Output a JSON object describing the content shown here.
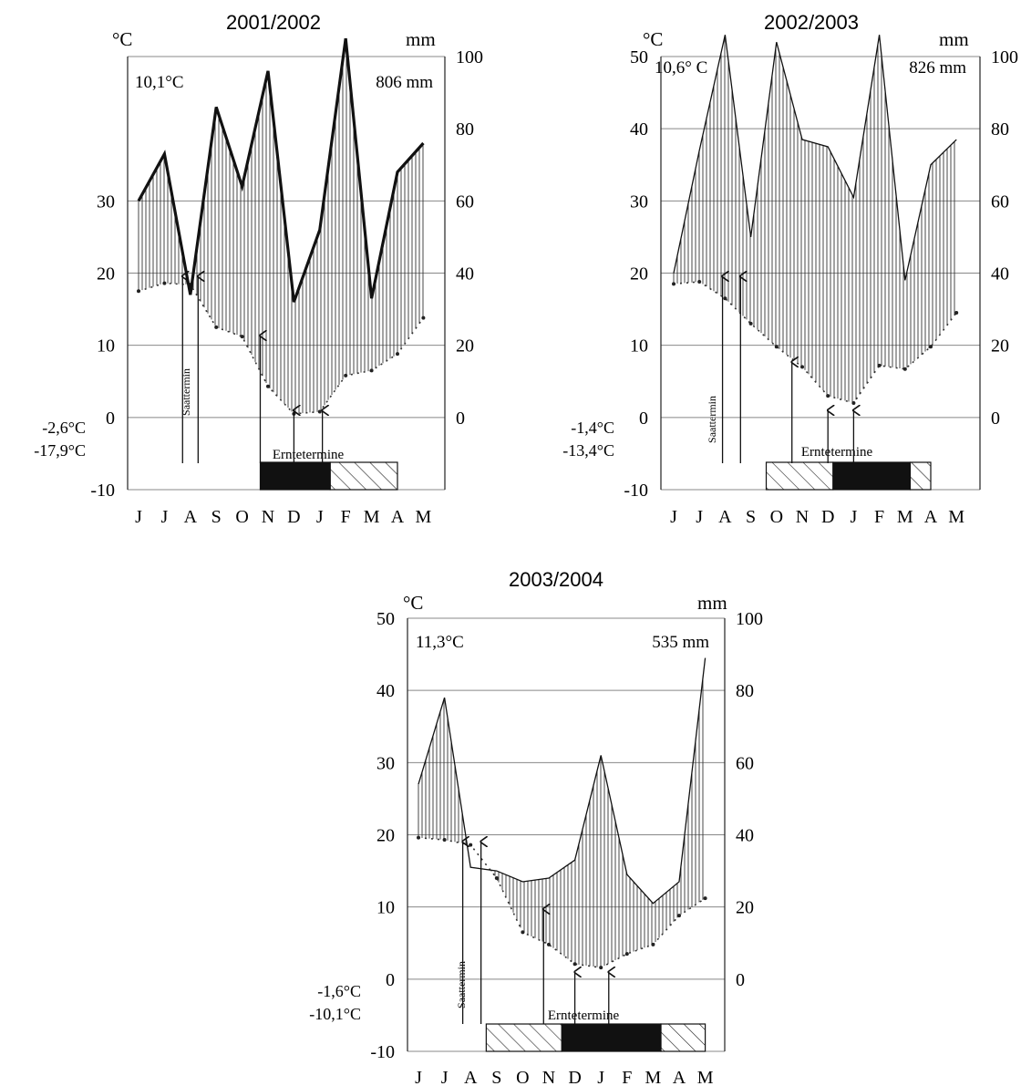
{
  "chart_data": [
    {
      "type": "line",
      "title": "2001/2002",
      "y_left_unit": "°C",
      "y_right_unit": "mm",
      "y_left_ticks": [
        "-10",
        "0",
        "10",
        "20",
        "30"
      ],
      "y_right_ticks": [
        "0",
        "20",
        "40",
        "60",
        "80",
        "100"
      ],
      "mean_temperature": "10,1°C",
      "annual_precipitation": "806 mm",
      "min_temperature_labels": [
        "-2,6°C",
        "-17,9°C"
      ],
      "sowing_label": "Saattermin",
      "harvest_label": "Erntetermine",
      "months": [
        "J",
        "J",
        "A",
        "S",
        "O",
        "N",
        "D",
        "J",
        "F",
        "M",
        "A",
        "M"
      ],
      "series": [
        {
          "name": "precipitation",
          "unit": "mm",
          "values": [
            60,
            73,
            34,
            86,
            64,
            96,
            32,
            52,
            105,
            33,
            68,
            76
          ]
        },
        {
          "name": "temperature",
          "unit": "°C",
          "values": [
            17.5,
            18.6,
            18.4,
            12.5,
            11.2,
            4.3,
            0.5,
            0.8,
            5.8,
            6.5,
            8.8,
            13.8
          ]
        }
      ],
      "sowing_months": [
        7.7,
        8.3
      ],
      "harvest_months": [
        10.7,
        12.0,
        13.1
      ],
      "calendar_bars": [
        {
          "start": 10.7,
          "end": 13.4,
          "fill": "solid"
        },
        {
          "start": 13.4,
          "end": 16.0,
          "fill": "hatched"
        }
      ]
    },
    {
      "type": "line",
      "title": "2002/2003",
      "y_left_unit": "°C",
      "y_right_unit": "mm",
      "y_left_ticks": [
        "-10",
        "0",
        "10",
        "20",
        "30",
        "40",
        "50"
      ],
      "y_right_ticks": [
        "0",
        "20",
        "40",
        "60",
        "80",
        "100"
      ],
      "mean_temperature": "10,6° C",
      "annual_precipitation": "826 mm",
      "min_temperature_labels": [
        "-1,4°C",
        "-13,4°C"
      ],
      "sowing_label": "Saattermin",
      "harvest_label": "Erntetermine",
      "months": [
        "J",
        "J",
        "A",
        "S",
        "O",
        "N",
        "D",
        "J",
        "F",
        "M",
        "A",
        "M"
      ],
      "series": [
        {
          "name": "precipitation",
          "unit": "mm",
          "values": [
            40,
            74,
            106,
            50,
            104,
            77,
            75,
            61,
            106,
            38,
            70,
            77
          ]
        },
        {
          "name": "temperature",
          "unit": "°C",
          "values": [
            18.5,
            18.8,
            16.5,
            13.0,
            9.8,
            7.0,
            3.0,
            2.0,
            7.2,
            6.7,
            9.8,
            14.5
          ]
        }
      ],
      "sowing_months": [
        7.9,
        8.6
      ],
      "harvest_months": [
        10.6,
        12.0,
        13.0
      ],
      "calendar_bars": [
        {
          "start": 9.6,
          "end": 12.2,
          "fill": "hatched"
        },
        {
          "start": 12.2,
          "end": 15.2,
          "fill": "solid"
        },
        {
          "start": 15.2,
          "end": 16.0,
          "fill": "hatched"
        }
      ]
    },
    {
      "type": "line",
      "title": "2003/2004",
      "y_left_unit": "°C",
      "y_right_unit": "mm",
      "y_left_ticks": [
        "-10",
        "0",
        "10",
        "20",
        "30",
        "40",
        "50"
      ],
      "y_right_ticks": [
        "0",
        "20",
        "40",
        "60",
        "80",
        "100"
      ],
      "mean_temperature": "11,3°C",
      "annual_precipitation": "535 mm",
      "min_temperature_labels": [
        "-1,6°C",
        "-10,1°C"
      ],
      "sowing_label": "Saattermin",
      "harvest_label": "Erntetermine",
      "months": [
        "J",
        "J",
        "A",
        "S",
        "O",
        "N",
        "D",
        "J",
        "F",
        "M",
        "A",
        "M"
      ],
      "series": [
        {
          "name": "precipitation",
          "unit": "mm",
          "values": [
            54,
            78,
            31,
            30,
            27,
            28,
            33,
            62,
            29,
            21,
            27,
            89
          ]
        },
        {
          "name": "temperature",
          "unit": "°C",
          "values": [
            19.6,
            19.3,
            18.6,
            14.0,
            6.5,
            4.8,
            2.1,
            1.6,
            3.5,
            4.8,
            8.8,
            11.2
          ]
        }
      ],
      "sowing_months": [
        7.7,
        8.4
      ],
      "harvest_months": [
        10.8,
        12.0,
        13.3
      ],
      "calendar_bars": [
        {
          "start": 8.6,
          "end": 11.5,
          "fill": "hatched"
        },
        {
          "start": 11.5,
          "end": 15.3,
          "fill": "solid"
        },
        {
          "start": 15.3,
          "end": 17.0,
          "fill": "hatched"
        }
      ]
    }
  ]
}
